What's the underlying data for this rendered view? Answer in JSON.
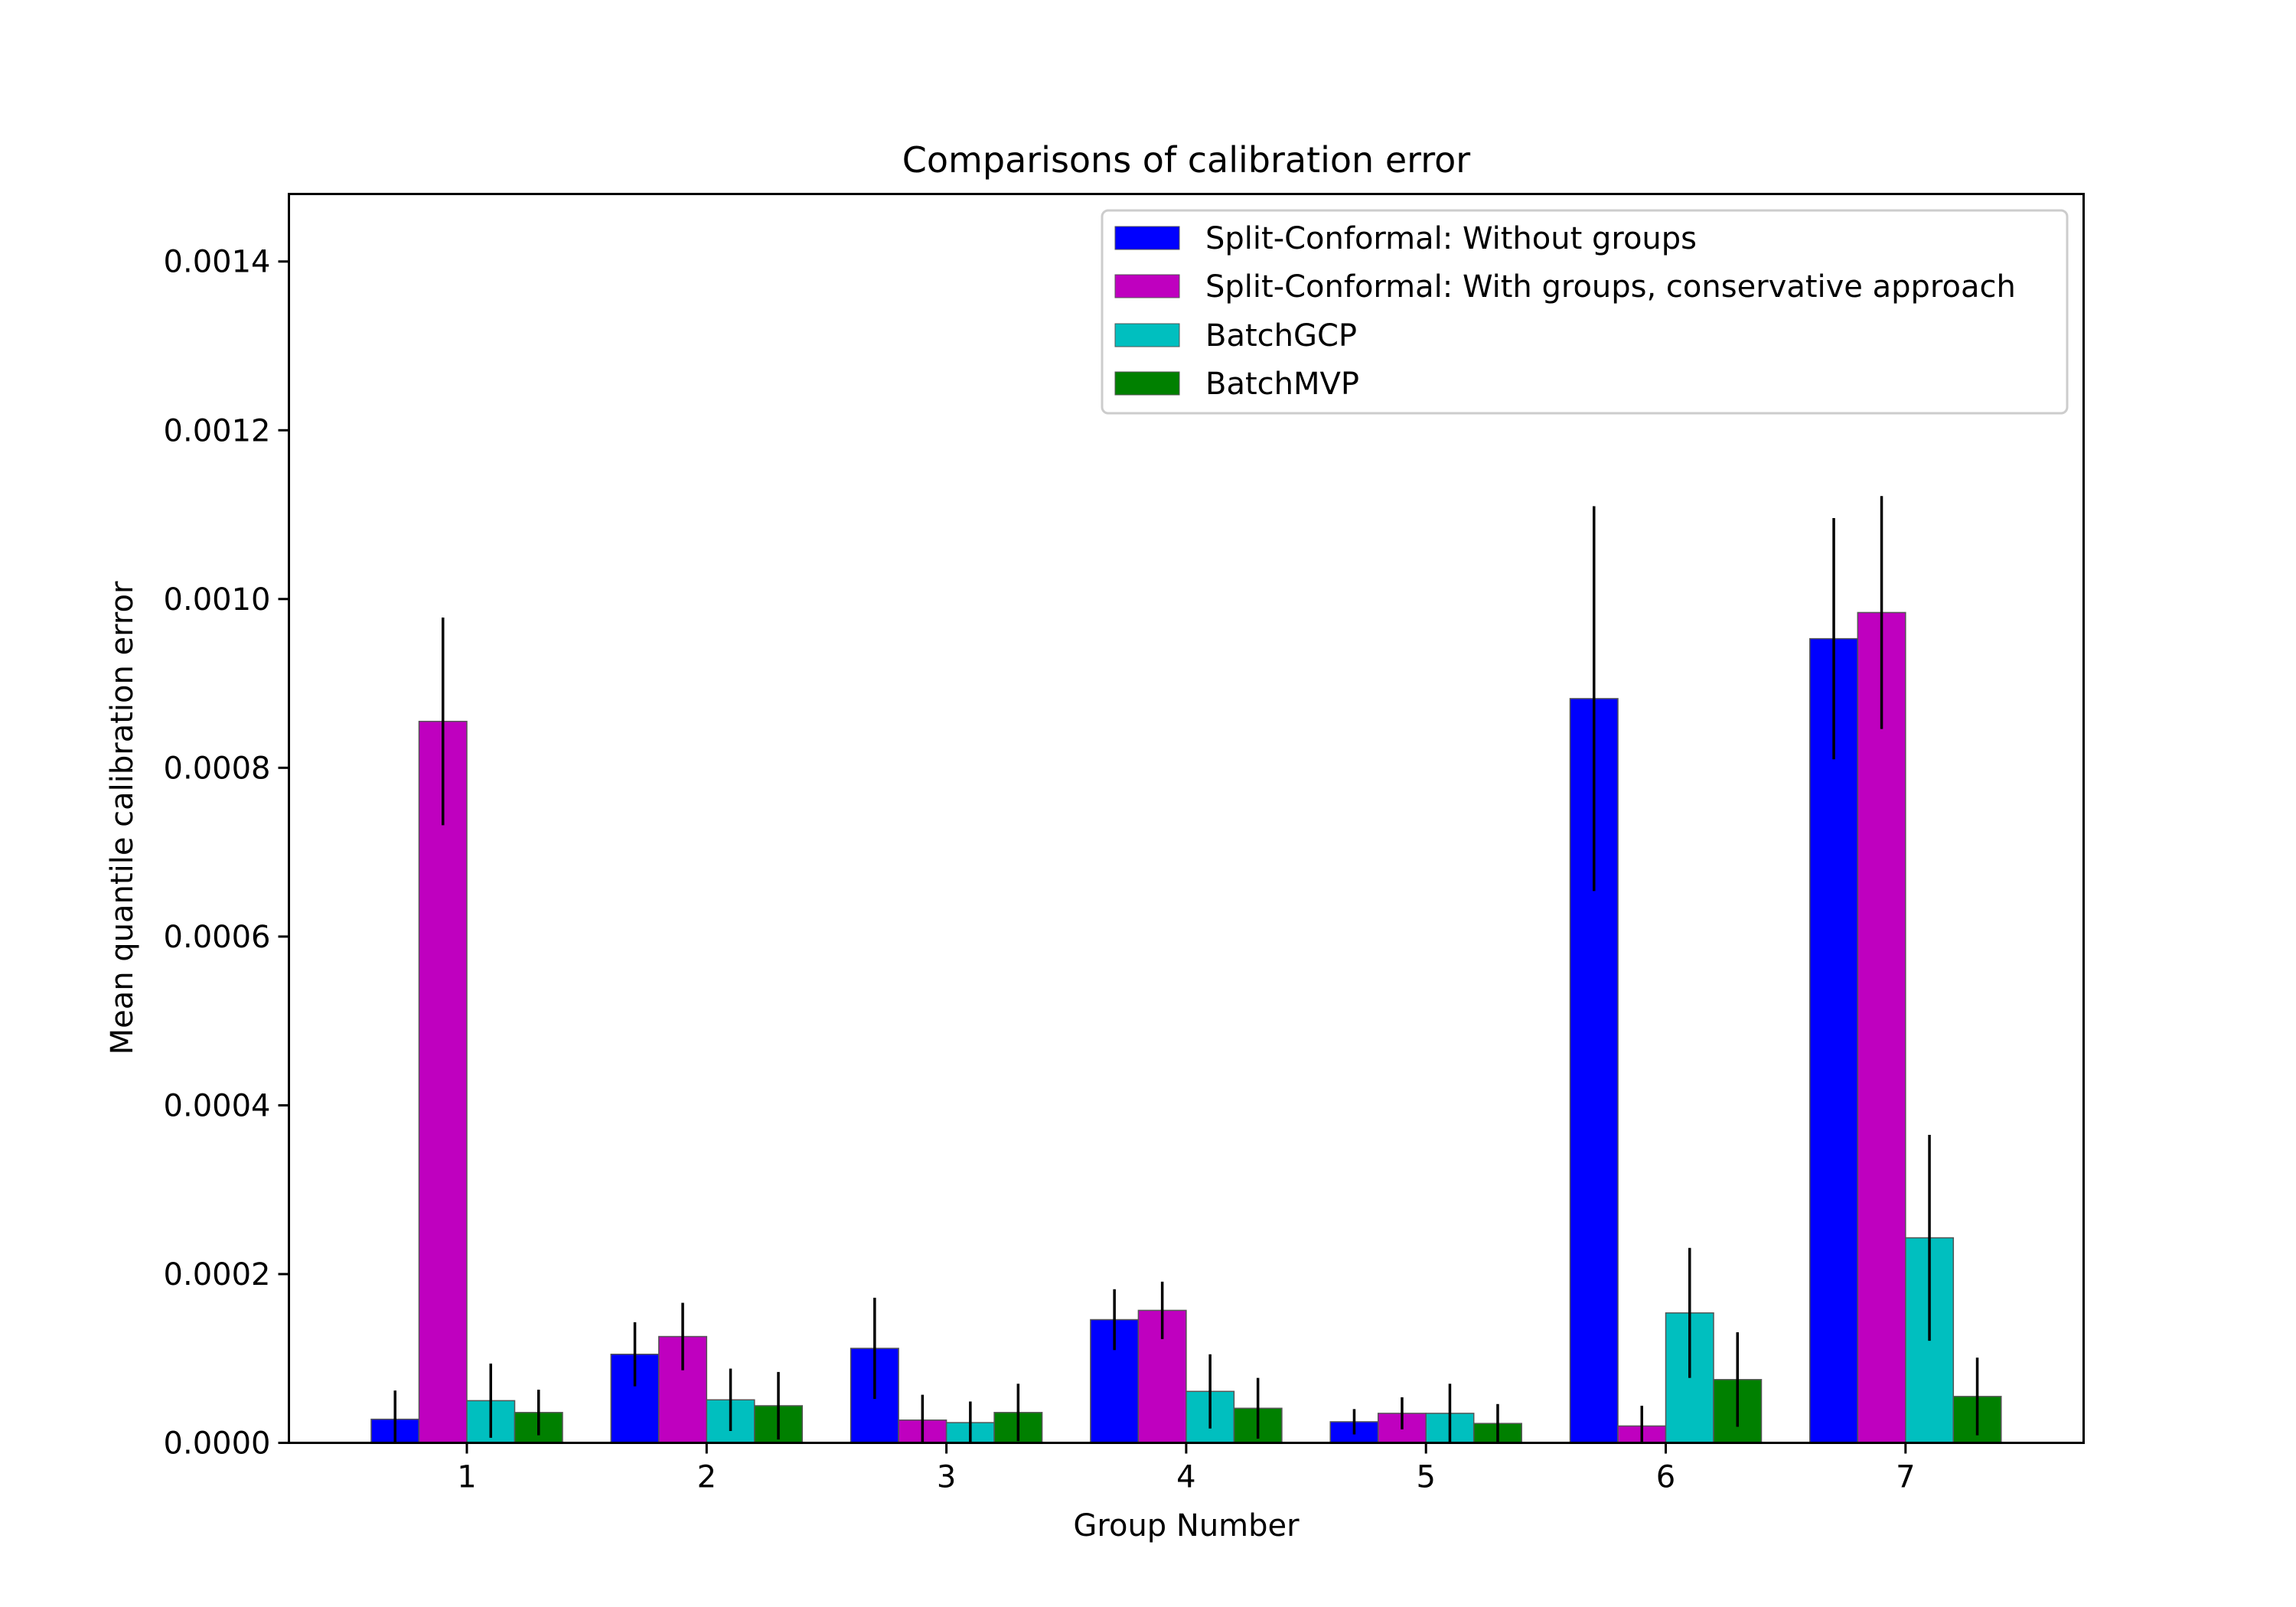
{
  "chart_data": {
    "type": "bar",
    "title": "Comparisons of calibration error",
    "xlabel": "Group Number",
    "ylabel": "Mean quantile calibration error",
    "categories": [
      "1",
      "2",
      "3",
      "4",
      "5",
      "6",
      "7"
    ],
    "ylim": [
      0,
      0.00148
    ],
    "yticks": [
      "0.0000",
      "0.0002",
      "0.0004",
      "0.0006",
      "0.0008",
      "0.0010",
      "0.0012",
      "0.0014"
    ],
    "ytick_values": [
      0,
      0.0002,
      0.0004,
      0.0006,
      0.0008,
      0.001,
      0.0012,
      0.0014
    ],
    "grid": false,
    "legend_position": "top-right",
    "series": [
      {
        "name": "Split-Conformal: Without groups",
        "color": "#0000ff",
        "values": [
          2.8e-05,
          0.000105,
          0.000112,
          0.000146,
          2.5e-05,
          0.000882,
          0.000953
        ],
        "errors": [
          3.4e-05,
          3.8e-05,
          6e-05,
          3.6e-05,
          1.5e-05,
          0.000228,
          0.000143
        ]
      },
      {
        "name": "Split-Conformal: With groups, conservative approach",
        "color": "#bf00bf",
        "values": [
          0.000855,
          0.000126,
          2.7e-05,
          0.000157,
          3.5e-05,
          2e-05,
          0.000984
        ],
        "errors": [
          0.000123,
          4e-05,
          3e-05,
          3.4e-05,
          1.9e-05,
          2.4e-05,
          0.000138
        ]
      },
      {
        "name": "BatchGCP",
        "color": "#00bfbf",
        "values": [
          5e-05,
          5.1e-05,
          2.4e-05,
          6.1e-05,
          3.5e-05,
          0.000154,
          0.000243
        ],
        "errors": [
          4.4e-05,
          3.7e-05,
          2.5e-05,
          4.4e-05,
          3.5e-05,
          7.7e-05,
          0.000122
        ]
      },
      {
        "name": "BatchMVP",
        "color": "#008000",
        "values": [
          3.6e-05,
          4.4e-05,
          3.6e-05,
          4.1e-05,
          2.3e-05,
          7.5e-05,
          5.5e-05
        ],
        "errors": [
          2.7e-05,
          4e-05,
          3.4e-05,
          3.6e-05,
          2.3e-05,
          5.6e-05,
          4.6e-05
        ]
      }
    ]
  }
}
